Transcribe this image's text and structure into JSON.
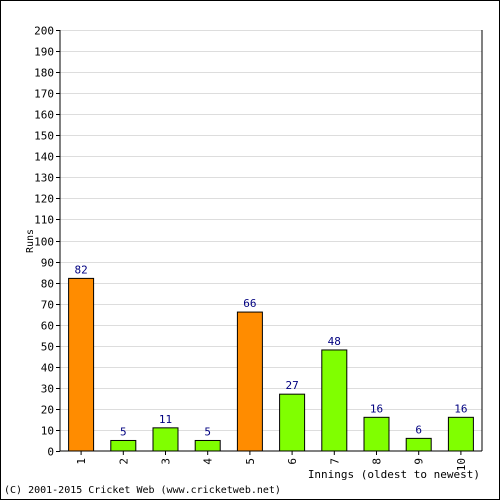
{
  "chart_data": {
    "type": "bar",
    "title": "",
    "xlabel": "Innings (oldest to newest)",
    "ylabel": "Runs",
    "ylim": [
      0,
      200
    ],
    "ytick_step": 10,
    "grid": true,
    "categories": [
      "1",
      "2",
      "3",
      "4",
      "5",
      "6",
      "7",
      "8",
      "9",
      "10"
    ],
    "values": [
      82,
      5,
      11,
      5,
      66,
      27,
      48,
      16,
      6,
      16
    ],
    "data_labels": [
      "82",
      "5",
      "11",
      "5",
      "66",
      "27",
      "48",
      "16",
      "6",
      "16"
    ],
    "bar_colors": [
      "#ff8c00",
      "#80ff00",
      "#80ff00",
      "#80ff00",
      "#ff8c00",
      "#80ff00",
      "#80ff00",
      "#80ff00",
      "#80ff00",
      "#80ff00"
    ],
    "label_color": "#000080",
    "grid_color": "#dddddd"
  },
  "footer": {
    "copyright": "(C) 2001-2015 Cricket Web (www.cricketweb.net)"
  }
}
